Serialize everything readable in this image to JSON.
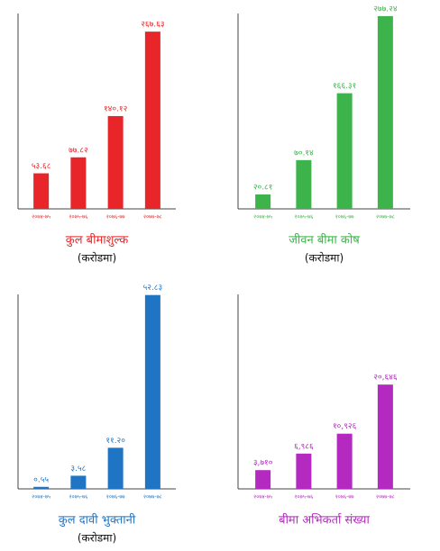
{
  "chart_data": [
    {
      "type": "bar",
      "title": "कुल बीमाशुल्क",
      "subtitle": "(करोडमा)",
      "color": "#e8262a",
      "categories": [
        "२०७४-७५",
        "२०७५-७६",
        "२०७६-७७",
        "२०७७-७८"
      ],
      "values": [
        53.68,
        77.82,
        140.12,
        267.63
      ],
      "value_labels": [
        "५३.६८",
        "७७.८२",
        "१४०.१२",
        "२६७.६३"
      ],
      "ylim": [
        0,
        295
      ]
    },
    {
      "type": "bar",
      "title": "जीवन बीमा कोष",
      "subtitle": "(करोडमा)",
      "color": "#3cb44b",
      "categories": [
        "२०७४-७५",
        "२०७५-७६",
        "२०७६-७७",
        "२०७७-७८"
      ],
      "values": [
        20.81,
        70.14,
        166.31,
        277.24
      ],
      "value_labels": [
        "२०.८१",
        "७०.१४",
        "१६६.३१",
        "२७७.२४"
      ],
      "ylim": [
        0,
        281
      ]
    },
    {
      "type": "bar",
      "title": "कुल दावी भुक्तानी",
      "subtitle": "(करोडमा)",
      "color": "#1f75c4",
      "categories": [
        "२०७४-७५",
        "२०७५-७६",
        "२०७६-७७",
        "२०७७-७८"
      ],
      "values": [
        0.55,
        3.58,
        11.2,
        52.83
      ],
      "value_labels": [
        "०.५५",
        "३.५८",
        "११.२०",
        "५२.८३"
      ],
      "ylim": [
        0,
        53
      ]
    },
    {
      "type": "bar",
      "title": "बीमा अभिकर्ता संख्या",
      "color": "#b42ac0",
      "categories": [
        "२०७४-७५",
        "२०७५-७६",
        "२०७६-७७",
        "२०७७-७८"
      ],
      "values": [
        3710,
        6986,
        10926,
        20646
      ],
      "value_labels": [
        "३,७१०",
        "६,९८६",
        "१०,९२६",
        "२०,६४६"
      ],
      "ylim": [
        0,
        38500
      ]
    }
  ]
}
